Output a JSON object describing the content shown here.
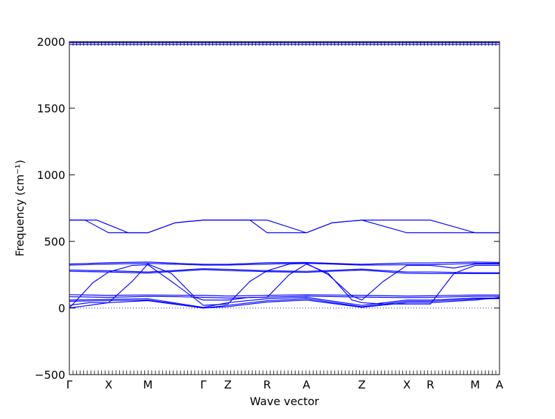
{
  "chart_data": {
    "type": "line",
    "title": "",
    "xlabel": "Wave vector",
    "ylabel": "Frequency (cm⁻¹)",
    "ylim": [
      -500,
      2000
    ],
    "yticks": [
      -500,
      0,
      500,
      1000,
      1500,
      2000
    ],
    "grid": false,
    "legend": "none",
    "x_symmetry_points": [
      {
        "label": "Γ",
        "x": 0.0
      },
      {
        "label": "X",
        "x": 0.5
      },
      {
        "label": "M",
        "x": 1.0
      },
      {
        "label": "Γ",
        "x": 1.707
      },
      {
        "label": "Z",
        "x": 2.02
      },
      {
        "label": "R",
        "x": 2.52
      },
      {
        "label": "A",
        "x": 3.02
      },
      {
        "label": "Z",
        "x": 3.727
      },
      {
        "label": "X",
        "x": 4.3
      },
      {
        "label": "R",
        "x": 4.6
      },
      {
        "label": "M",
        "x": 5.17
      },
      {
        "label": "A",
        "x": 5.48
      }
    ],
    "xlim": [
      0,
      5.48
    ],
    "series_color": "#0000ff",
    "zero_line_style": "dotted",
    "series": [
      {
        "values": [
          [
            0,
            1980
          ],
          [
            5.48,
            1980
          ]
        ]
      },
      {
        "values": [
          [
            0,
            1993
          ],
          [
            5.48,
            1993
          ]
        ]
      },
      {
        "values": [
          [
            0,
            660
          ],
          [
            0.35,
            660
          ],
          [
            0.75,
            565
          ],
          [
            1.0,
            565
          ],
          [
            1.35,
            640
          ],
          [
            1.707,
            660
          ],
          [
            2.02,
            660
          ],
          [
            2.52,
            660
          ],
          [
            3.02,
            565
          ],
          [
            3.35,
            640
          ],
          [
            3.727,
            660
          ],
          [
            4.3,
            660
          ],
          [
            4.6,
            660
          ],
          [
            5.17,
            565
          ],
          [
            5.48,
            565
          ]
        ]
      },
      {
        "values": [
          [
            0,
            660
          ],
          [
            0.2,
            660
          ],
          [
            0.5,
            565
          ],
          [
            1.0,
            565
          ],
          [
            1.35,
            640
          ],
          [
            1.707,
            660
          ],
          [
            2.02,
            660
          ],
          [
            2.3,
            660
          ],
          [
            2.52,
            565
          ],
          [
            3.02,
            565
          ],
          [
            3.35,
            640
          ],
          [
            3.727,
            660
          ],
          [
            4.3,
            565
          ],
          [
            4.6,
            565
          ],
          [
            5.17,
            565
          ],
          [
            5.48,
            565
          ]
        ]
      },
      {
        "values": [
          [
            0,
            330
          ],
          [
            0.5,
            340
          ],
          [
            1.0,
            345
          ],
          [
            1.4,
            335
          ],
          [
            1.707,
            328
          ],
          [
            2.02,
            328
          ],
          [
            2.52,
            340
          ],
          [
            3.02,
            342
          ],
          [
            3.727,
            328
          ],
          [
            4.3,
            338
          ],
          [
            4.6,
            338
          ],
          [
            5.17,
            345
          ],
          [
            5.48,
            342
          ]
        ]
      },
      {
        "values": [
          [
            0,
            322
          ],
          [
            0.5,
            330
          ],
          [
            1.0,
            335
          ],
          [
            1.707,
            322
          ],
          [
            2.02,
            322
          ],
          [
            2.52,
            330
          ],
          [
            3.02,
            336
          ],
          [
            3.727,
            322
          ],
          [
            4.3,
            325
          ],
          [
            4.6,
            325
          ],
          [
            5.17,
            335
          ],
          [
            5.48,
            335
          ]
        ]
      },
      {
        "values": [
          [
            0,
            285
          ],
          [
            0.5,
            280
          ],
          [
            1.0,
            270
          ],
          [
            1.707,
            295
          ],
          [
            2.02,
            290
          ],
          [
            2.52,
            280
          ],
          [
            3.02,
            275
          ],
          [
            3.727,
            292
          ],
          [
            4.3,
            270
          ],
          [
            4.6,
            270
          ],
          [
            5.17,
            265
          ],
          [
            5.48,
            265
          ]
        ]
      },
      {
        "values": [
          [
            0,
            275
          ],
          [
            0.5,
            270
          ],
          [
            1.0,
            262
          ],
          [
            1.707,
            288
          ],
          [
            2.02,
            282
          ],
          [
            2.52,
            272
          ],
          [
            3.02,
            268
          ],
          [
            3.727,
            285
          ],
          [
            4.3,
            260
          ],
          [
            4.6,
            258
          ],
          [
            5.17,
            258
          ],
          [
            5.48,
            258
          ]
        ]
      },
      {
        "values": [
          [
            0,
            0
          ],
          [
            0.3,
            190
          ],
          [
            0.5,
            270
          ],
          [
            0.8,
            320
          ],
          [
            1.0,
            325
          ],
          [
            1.3,
            200
          ],
          [
            1.6,
            70
          ],
          [
            1.707,
            20
          ],
          [
            2.02,
            30
          ],
          [
            2.3,
            200
          ],
          [
            2.52,
            280
          ],
          [
            2.8,
            330
          ],
          [
            3.02,
            335
          ],
          [
            3.3,
            250
          ],
          [
            3.6,
            90
          ],
          [
            3.727,
            60
          ],
          [
            4.0,
            200
          ],
          [
            4.3,
            320
          ],
          [
            4.6,
            320
          ],
          [
            4.9,
            300
          ],
          [
            5.17,
            330
          ],
          [
            5.48,
            330
          ]
        ]
      },
      {
        "values": [
          [
            0,
            20
          ],
          [
            0.25,
            40
          ],
          [
            0.5,
            40
          ],
          [
            0.8,
            200
          ],
          [
            1.0,
            330
          ],
          [
            1.3,
            260
          ],
          [
            1.6,
            80
          ],
          [
            1.707,
            60
          ],
          [
            2.02,
            60
          ],
          [
            2.3,
            80
          ],
          [
            2.52,
            80
          ],
          [
            2.8,
            250
          ],
          [
            3.02,
            330
          ],
          [
            3.3,
            260
          ],
          [
            3.6,
            60
          ],
          [
            3.727,
            40
          ],
          [
            4.0,
            30
          ],
          [
            4.3,
            30
          ],
          [
            4.6,
            30
          ],
          [
            4.9,
            260
          ],
          [
            5.17,
            320
          ],
          [
            5.48,
            320
          ]
        ]
      },
      {
        "values": [
          [
            0,
            100
          ],
          [
            0.5,
            95
          ],
          [
            1.0,
            98
          ],
          [
            1.4,
            96
          ],
          [
            1.707,
            95
          ],
          [
            2.02,
            90
          ],
          [
            2.52,
            95
          ],
          [
            3.02,
            100
          ],
          [
            3.727,
            95
          ],
          [
            4.3,
            90
          ],
          [
            4.6,
            92
          ],
          [
            5.17,
            98
          ],
          [
            5.48,
            98
          ]
        ]
      },
      {
        "values": [
          [
            0,
            85
          ],
          [
            0.5,
            80
          ],
          [
            1.0,
            88
          ],
          [
            1.4,
            85
          ],
          [
            1.707,
            80
          ],
          [
            2.02,
            75
          ],
          [
            2.52,
            82
          ],
          [
            3.02,
            90
          ],
          [
            3.727,
            82
          ],
          [
            4.3,
            78
          ],
          [
            4.6,
            80
          ],
          [
            5.17,
            88
          ],
          [
            5.48,
            88
          ]
        ]
      },
      {
        "values": [
          [
            0,
            60
          ],
          [
            0.5,
            65
          ],
          [
            1.0,
            70
          ],
          [
            1.707,
            5
          ],
          [
            2.02,
            40
          ],
          [
            2.52,
            70
          ],
          [
            3.02,
            80
          ],
          [
            3.727,
            20
          ],
          [
            4.3,
            60
          ],
          [
            4.6,
            60
          ],
          [
            5.17,
            75
          ],
          [
            5.48,
            75
          ]
        ]
      },
      {
        "values": [
          [
            0,
            50
          ],
          [
            0.5,
            55
          ],
          [
            1.0,
            60
          ],
          [
            1.707,
            0
          ],
          [
            2.02,
            20
          ],
          [
            2.52,
            55
          ],
          [
            3.02,
            70
          ],
          [
            3.727,
            10
          ],
          [
            4.3,
            50
          ],
          [
            4.6,
            50
          ],
          [
            5.17,
            68
          ],
          [
            5.48,
            70
          ]
        ]
      },
      {
        "values": [
          [
            0,
            0
          ],
          [
            0.5,
            40
          ],
          [
            1.0,
            55
          ],
          [
            1.707,
            0
          ],
          [
            2.02,
            10
          ],
          [
            2.52,
            45
          ],
          [
            3.02,
            60
          ],
          [
            3.727,
            5
          ],
          [
            4.3,
            40
          ],
          [
            4.6,
            40
          ],
          [
            5.17,
            60
          ],
          [
            5.48,
            80
          ]
        ]
      }
    ]
  }
}
